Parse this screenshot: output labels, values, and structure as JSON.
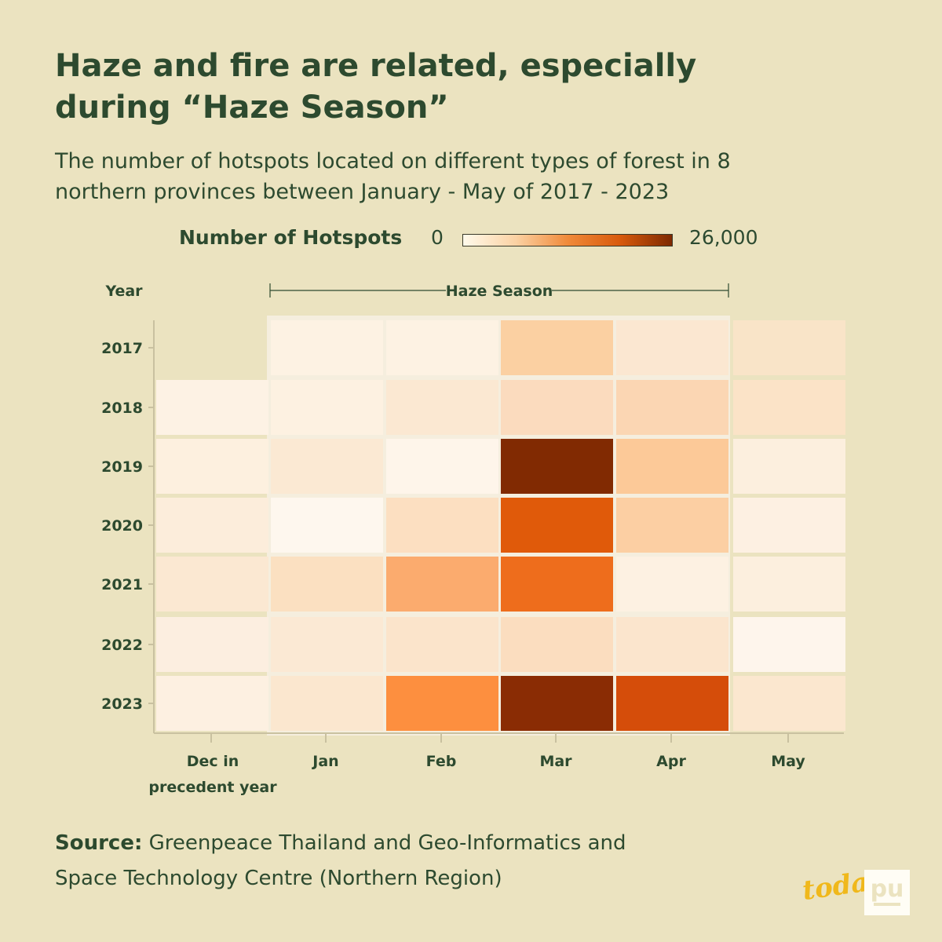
{
  "title": "Haze and fire are related, especially during “Haze Season”",
  "subtitle": "The number of hotspots located on different types of forest in 8 northern provinces between January - May of 2017 - 2023",
  "legend": {
    "label": "Number of Hotspots",
    "min_label": "0",
    "max_label": "26,000",
    "colors": [
      "#fffaeb",
      "#fbd2a4",
      "#f08a3a",
      "#d85a0c",
      "#7e2a02"
    ]
  },
  "source": {
    "prefix": "Source:",
    "text": " Greenpeace Thailand and Geo-Informatics and Space Technology Centre (Northern Region)"
  },
  "logos": {
    "today_text": "today",
    "icon": "pu-logo-icon"
  },
  "chart_data": {
    "type": "heatmap",
    "y_axis_title": "Year",
    "bracket_label": "Haze Season",
    "bracket_span": [
      "Jan",
      "Apr"
    ],
    "x_labels": [
      "Dec in\nprecedent year",
      "Jan",
      "Feb",
      "Mar",
      "Apr",
      "May"
    ],
    "years": [
      "2017",
      "2018",
      "2019",
      "2020",
      "2021",
      "2022",
      "2023"
    ],
    "value_range": [
      0,
      26000
    ],
    "values": [
      [
        null,
        400,
        600,
        7000,
        1500,
        1500
      ],
      [
        300,
        700,
        1500,
        3500,
        5000,
        3500
      ],
      [
        500,
        1500,
        500,
        26000,
        7000,
        1500
      ],
      [
        1000,
        300,
        3500,
        19500,
        6000,
        1000
      ],
      [
        2000,
        3500,
        9500,
        16500,
        1500,
        1000
      ],
      [
        1000,
        2000,
        2500,
        3500,
        2500,
        300
      ],
      [
        900,
        2500,
        12500,
        25500,
        20000,
        2500
      ]
    ],
    "cell_colors": [
      [
        null,
        "#fdf2e3",
        "#fdf2e3",
        "#fbd0a2",
        "#fbe7d1",
        "#f9e4c8"
      ],
      [
        "#fdf2e4",
        "#fdf1e1",
        "#fbe8d2",
        "#fbdbbe",
        "#fbd6b3",
        "#fbe3c7"
      ],
      [
        "#fdf0df",
        "#fbe9d3",
        "#fef5ea",
        "#812a02",
        "#fcc998",
        "#fcefde"
      ],
      [
        "#fceddb",
        "#fef7ee",
        "#fcdfc1",
        "#e05a0a",
        "#fccfa3",
        "#fdf0e2"
      ],
      [
        "#fbe8d2",
        "#fbe0c1",
        "#fbab6e",
        "#ee6d1c",
        "#fdf1e2",
        "#fcefde"
      ],
      [
        "#fceee0",
        "#fbe9d4",
        "#fbe4cb",
        "#fbddbf",
        "#fbe5cd",
        "#fef5ec"
      ],
      [
        "#fdf0e1",
        "#fbe7cf",
        "#fd8f3f",
        "#8a2c04",
        "#d54d0a",
        "#fbe7cf"
      ]
    ]
  }
}
